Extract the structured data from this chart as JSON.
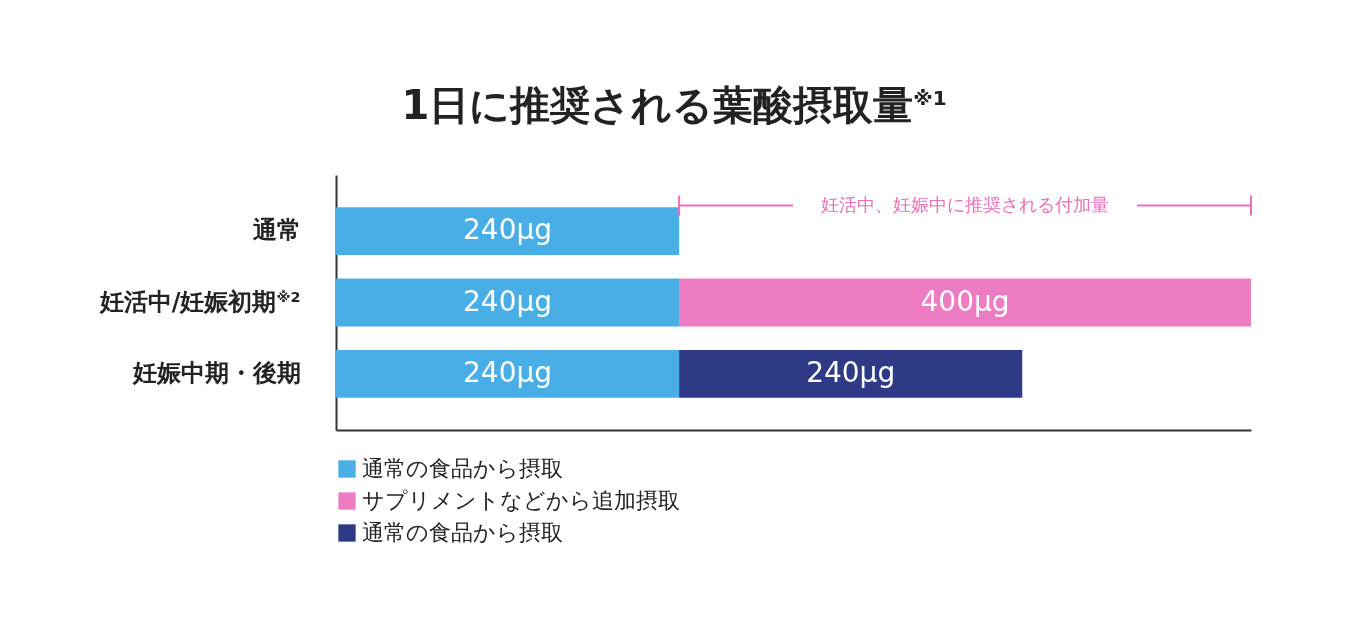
{
  "chart_data": {
    "type": "bar",
    "orientation": "horizontal",
    "stacked": true,
    "title": "1日に推奨される葉酸摂取量$^{※1}$",
    "categories": [
      "通常",
      "妊活中/妊娠初期$^{※2}$",
      "妊娠中期・後期"
    ],
    "series": [
      {
        "name": "通常の食品から摂取",
        "color": "#4aaee6",
        "values": [
          240,
          240,
          240
        ],
        "value_labels": [
          "240μg",
          "240μg",
          "240μg"
        ]
      },
      {
        "name": "サプリメントなどから追加摂取",
        "color": "#ee7cc3",
        "values": [
          null,
          400,
          null
        ],
        "value_labels": [
          null,
          "400μg",
          null
        ]
      },
      {
        "name": "通常の食品から摂取",
        "color": "#2e3a86",
        "values": [
          null,
          null,
          240
        ],
        "value_labels": [
          null,
          null,
          "240μg"
        ]
      }
    ],
    "annotations": [
      "妊活中、妊娠中に推奨される付加量"
    ],
    "tick_labels": "y",
    "legend": "bottom left"
  }
}
